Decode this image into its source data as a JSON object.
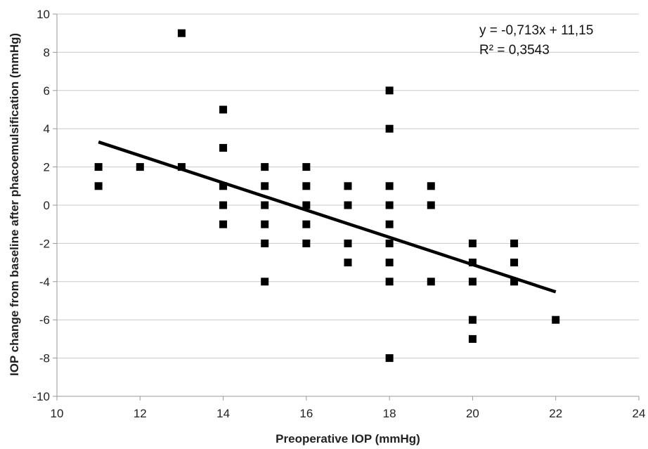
{
  "chart_data": {
    "type": "scatter",
    "xlabel": "Preoperative IOP (mmHg)",
    "ylabel": "IOP change from baseline after phacoemulsification (mmHg)",
    "xlim": [
      10,
      24
    ],
    "ylim": [
      -10,
      10
    ],
    "x_ticks": [
      10,
      12,
      14,
      16,
      18,
      20,
      22,
      24
    ],
    "y_ticks": [
      10,
      8,
      6,
      4,
      2,
      0,
      -2,
      -4,
      -6,
      -8,
      -10
    ],
    "x_tick_labels": [
      "10",
      "12",
      "14",
      "16",
      "18",
      "20",
      "22",
      "24"
    ],
    "y_tick_labels": [
      "10",
      "8",
      "6",
      "4",
      "2",
      "0",
      "-2",
      "-4",
      "-6",
      "-8",
      "-10"
    ],
    "grid": "horizontal",
    "marker": "square",
    "marker_color": "#000000",
    "points": [
      {
        "x": 11,
        "y": 2
      },
      {
        "x": 11,
        "y": 1
      },
      {
        "x": 12,
        "y": 2
      },
      {
        "x": 13,
        "y": 9
      },
      {
        "x": 13,
        "y": 2
      },
      {
        "x": 14,
        "y": 5
      },
      {
        "x": 14,
        "y": 3
      },
      {
        "x": 14,
        "y": 1
      },
      {
        "x": 14,
        "y": 0
      },
      {
        "x": 14,
        "y": -1
      },
      {
        "x": 15,
        "y": 2
      },
      {
        "x": 15,
        "y": 1
      },
      {
        "x": 15,
        "y": 0
      },
      {
        "x": 15,
        "y": -1
      },
      {
        "x": 15,
        "y": -2
      },
      {
        "x": 15,
        "y": -4
      },
      {
        "x": 16,
        "y": 2
      },
      {
        "x": 16,
        "y": 1
      },
      {
        "x": 16,
        "y": 0
      },
      {
        "x": 16,
        "y": -1
      },
      {
        "x": 16,
        "y": -2
      },
      {
        "x": 17,
        "y": 1
      },
      {
        "x": 17,
        "y": 0
      },
      {
        "x": 17,
        "y": -2
      },
      {
        "x": 17,
        "y": -3
      },
      {
        "x": 18,
        "y": 6
      },
      {
        "x": 18,
        "y": 4
      },
      {
        "x": 18,
        "y": 1
      },
      {
        "x": 18,
        "y": 0
      },
      {
        "x": 18,
        "y": -1
      },
      {
        "x": 18,
        "y": -2
      },
      {
        "x": 18,
        "y": -3
      },
      {
        "x": 18,
        "y": -4
      },
      {
        "x": 18,
        "y": -8
      },
      {
        "x": 19,
        "y": 1
      },
      {
        "x": 19,
        "y": 0
      },
      {
        "x": 19,
        "y": -4
      },
      {
        "x": 20,
        "y": -2
      },
      {
        "x": 20,
        "y": -3
      },
      {
        "x": 20,
        "y": -4
      },
      {
        "x": 20,
        "y": -6
      },
      {
        "x": 20,
        "y": -7
      },
      {
        "x": 21,
        "y": -2
      },
      {
        "x": 21,
        "y": -3
      },
      {
        "x": 21,
        "y": -4
      },
      {
        "x": 22,
        "y": -6
      }
    ],
    "trendline": {
      "slope": -0.713,
      "intercept": 11.15,
      "x_range": [
        11,
        22
      ],
      "color": "#000000",
      "equation_label": "y = -0,713x + 11,15",
      "r2_label": "R² = 0,3543"
    }
  }
}
